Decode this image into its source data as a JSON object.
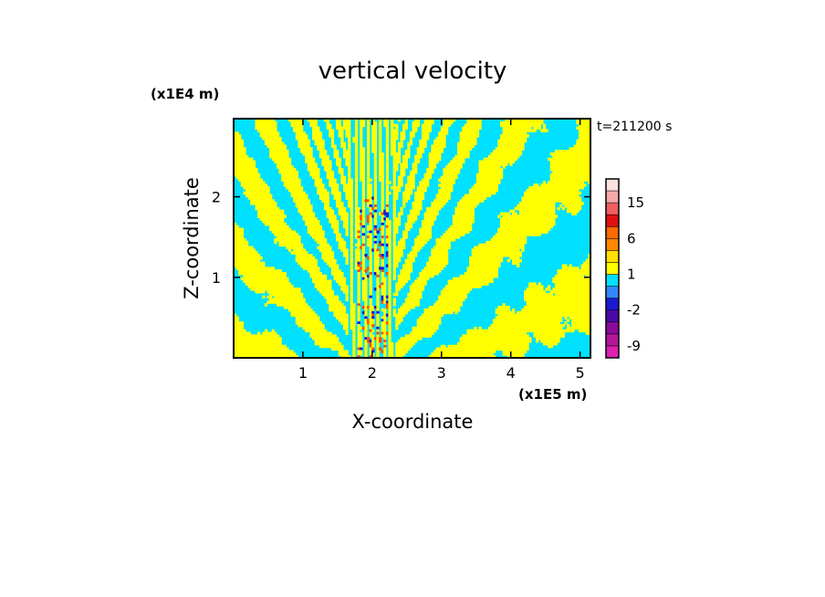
{
  "chart_data": {
    "type": "heatmap",
    "title": "vertical velocity",
    "xlabel": "X-coordinate",
    "ylabel": "Z-coordinate",
    "x_unit": "(x1E5 m)",
    "y_unit": "(x1E4 m)",
    "time_label": "t=211200 s",
    "xlim": [
      0,
      5.15
    ],
    "ylim": [
      0,
      2.97
    ],
    "x_ticks": [
      1,
      2,
      3,
      4,
      5
    ],
    "y_ticks": [
      1,
      2
    ],
    "colorbar": {
      "levels": [
        -12,
        -9,
        -6,
        -4,
        -2,
        -1,
        0,
        1,
        2,
        4,
        6,
        9,
        12,
        15,
        18,
        21
      ],
      "colors": [
        "#e020b0",
        "#b8169a",
        "#8a0a9c",
        "#4c08a8",
        "#1a1ad0",
        "#3388ff",
        "#00e0ff",
        "#ffff00",
        "#ffe000",
        "#ff8800",
        "#ff6a00",
        "#e01010",
        "#f06060",
        "#f8a8a8",
        "#fde0e0"
      ],
      "tick_labels": [
        {
          "label": "15",
          "value": 15
        },
        {
          "label": "6",
          "value": 6
        },
        {
          "label": "1",
          "value": 1
        },
        {
          "label": "-2",
          "value": -2
        },
        {
          "label": "-9",
          "value": -9
        }
      ]
    },
    "field_description_colors": {
      "positive": "#ffff00",
      "negative": "#00e0ff",
      "strong_positive": "#ff5000",
      "strong_negative": "#1a1ad0"
    }
  }
}
